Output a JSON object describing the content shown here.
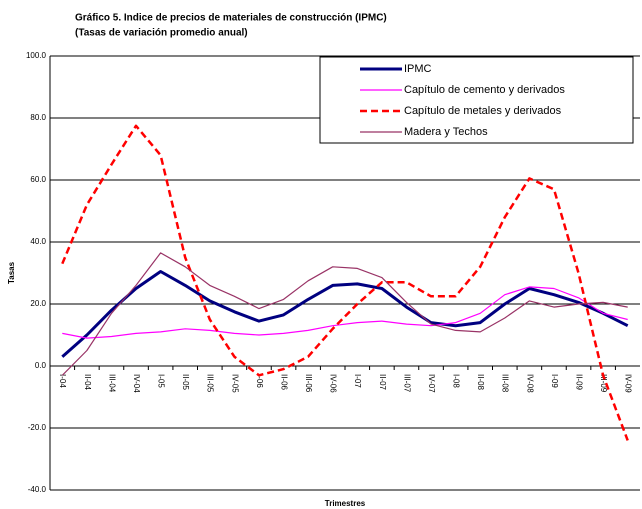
{
  "chart_data": {
    "type": "line",
    "title": "Gráfico 5. Indice de precios de materiales de construcción (IPMC)",
    "subtitle": "(Tasas de variación promedio anual)",
    "y_label": "Tasas",
    "x_label": "Trimestres",
    "categories": [
      "I-04",
      "II-04",
      "III-04",
      "IV-04",
      "I-05",
      "II-05",
      "III-05",
      "IV-05",
      "I-06",
      "II-06",
      "III-06",
      "IV-06",
      "I-07",
      "II-07",
      "III-07",
      "IV-07",
      "I-08",
      "II-08",
      "III-08",
      "IV-08",
      "I-09",
      "II-09",
      "III-09",
      "IV-09"
    ],
    "series": [
      {
        "name": "IPMC",
        "color": "#000080",
        "values": [
          3,
          10,
          18,
          25,
          30.5,
          26,
          21,
          17.5,
          14.5,
          16.5,
          21.5,
          26,
          26.5,
          25,
          19,
          14,
          13,
          14,
          20,
          25,
          23,
          20.5,
          17,
          13
        ]
      },
      {
        "name": "Capítulo de cemento y derivados",
        "color": "#ff00ff",
        "values": [
          10.5,
          9,
          9.5,
          10.5,
          11,
          12,
          11.5,
          10.5,
          10,
          10.5,
          11.5,
          13,
          14,
          14.5,
          13.5,
          13,
          14,
          17,
          23,
          25.5,
          25,
          22,
          17,
          15
        ]
      },
      {
        "name": "Capítulo de metales y derivados",
        "color": "#ff0000",
        "values": [
          33,
          52,
          65,
          77.5,
          68,
          35,
          15,
          3,
          -3,
          -1,
          3,
          12,
          20,
          27,
          27,
          22.5,
          22.5,
          32,
          48,
          60.5,
          57,
          30,
          -3,
          -24
        ]
      },
      {
        "name": "Madera y Techos",
        "color": "#993366",
        "values": [
          -3,
          5,
          17,
          26,
          36.5,
          32,
          26,
          22.5,
          18.5,
          21.5,
          27.5,
          32,
          31.5,
          28.5,
          20.5,
          13.5,
          11.5,
          11,
          15.5,
          21,
          19,
          20,
          20.5,
          19
        ]
      }
    ],
    "ylim": [
      -40,
      100
    ],
    "yticks": [
      {
        "value": -40,
        "label": "-40.0"
      },
      {
        "value": -20,
        "label": "-20.0"
      },
      {
        "value": 0,
        "label": "0.0"
      },
      {
        "value": 20,
        "label": "20.0"
      },
      {
        "value": 40,
        "label": "40.0"
      },
      {
        "value": 60,
        "label": "60.0"
      },
      {
        "value": 80,
        "label": "80.0"
      },
      {
        "value": 100,
        "label": "100.0"
      }
    ],
    "grid": true
  }
}
